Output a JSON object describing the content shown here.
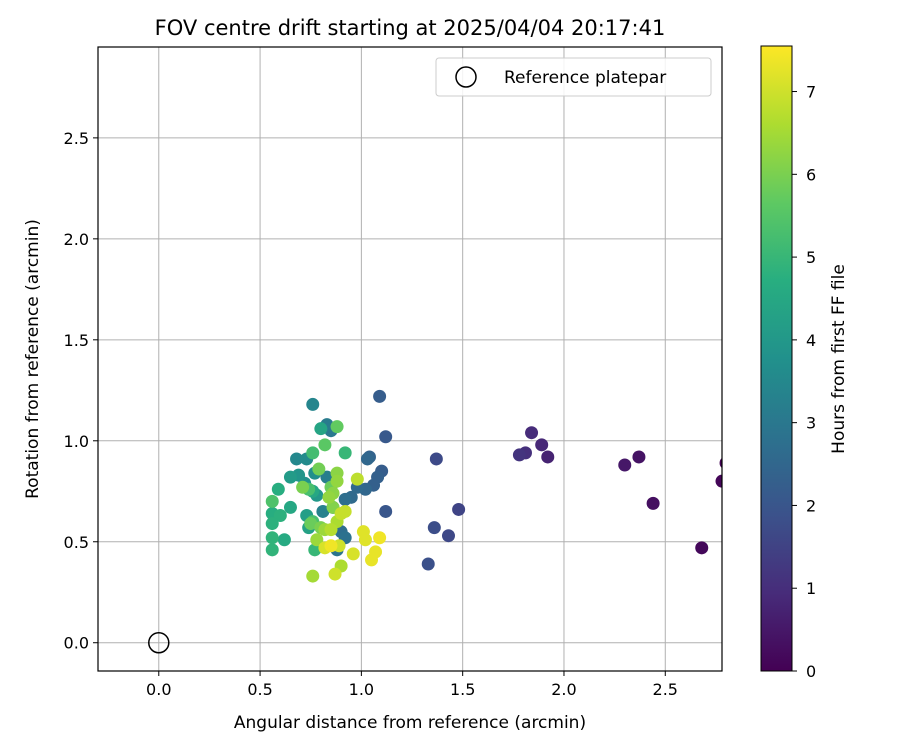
{
  "chart_data": {
    "type": "scatter",
    "title": "FOV centre drift starting at 2025/04/04 20:17:41",
    "xlabel": "Angular distance from reference (arcmin)",
    "ylabel": "Rotation from reference (arcmin)",
    "xlim": [
      -0.3,
      2.78
    ],
    "ylim": [
      -0.14,
      2.95
    ],
    "xticks": [
      "0.0",
      "0.5",
      "1.0",
      "1.5",
      "2.0",
      "2.5"
    ],
    "yticks": [
      "0.0",
      "0.5",
      "1.0",
      "1.5",
      "2.0",
      "2.5"
    ],
    "grid": true,
    "legend": {
      "position": "top-right",
      "entries": [
        "Reference platepar"
      ]
    },
    "colorbar": {
      "label": "Hours from first FF file",
      "range": [
        0,
        7.55
      ],
      "ticks": [
        "0",
        "1",
        "2",
        "3",
        "4",
        "5",
        "6",
        "7"
      ],
      "colormap": "viridis"
    },
    "reference_point": {
      "x": 0.0,
      "y": 0.0
    },
    "points": [
      {
        "x": 2.8,
        "y": 0.89,
        "c": 0.05
      },
      {
        "x": 2.78,
        "y": 0.8,
        "c": 0.1
      },
      {
        "x": 2.68,
        "y": 0.47,
        "c": 0.15
      },
      {
        "x": 2.44,
        "y": 0.69,
        "c": 0.3
      },
      {
        "x": 2.37,
        "y": 0.92,
        "c": 0.4
      },
      {
        "x": 2.3,
        "y": 0.88,
        "c": 0.5
      },
      {
        "x": 1.92,
        "y": 0.92,
        "c": 0.75
      },
      {
        "x": 1.89,
        "y": 0.98,
        "c": 0.85
      },
      {
        "x": 1.84,
        "y": 1.04,
        "c": 0.95
      },
      {
        "x": 1.81,
        "y": 0.94,
        "c": 1.05
      },
      {
        "x": 1.78,
        "y": 0.93,
        "c": 1.15
      },
      {
        "x": 1.48,
        "y": 0.66,
        "c": 1.55
      },
      {
        "x": 1.43,
        "y": 0.53,
        "c": 1.65
      },
      {
        "x": 1.37,
        "y": 0.91,
        "c": 1.7
      },
      {
        "x": 1.36,
        "y": 0.57,
        "c": 1.8
      },
      {
        "x": 1.33,
        "y": 0.39,
        "c": 1.85
      },
      {
        "x": 1.12,
        "y": 1.02,
        "c": 2.1
      },
      {
        "x": 1.12,
        "y": 0.65,
        "c": 2.0
      },
      {
        "x": 1.09,
        "y": 1.22,
        "c": 2.2
      },
      {
        "x": 1.1,
        "y": 0.85,
        "c": 2.2
      },
      {
        "x": 1.08,
        "y": 0.82,
        "c": 2.3
      },
      {
        "x": 1.06,
        "y": 0.78,
        "c": 2.3
      },
      {
        "x": 1.04,
        "y": 0.92,
        "c": 2.4
      },
      {
        "x": 1.03,
        "y": 0.91,
        "c": 2.5
      },
      {
        "x": 1.02,
        "y": 0.76,
        "c": 2.5
      },
      {
        "x": 0.98,
        "y": 0.77,
        "c": 2.6
      },
      {
        "x": 0.95,
        "y": 0.72,
        "c": 2.6
      },
      {
        "x": 0.92,
        "y": 0.71,
        "c": 2.7
      },
      {
        "x": 0.9,
        "y": 0.55,
        "c": 2.7
      },
      {
        "x": 0.92,
        "y": 0.52,
        "c": 2.8
      },
      {
        "x": 0.88,
        "y": 0.46,
        "c": 2.9
      },
      {
        "x": 0.85,
        "y": 1.05,
        "c": 3.0
      },
      {
        "x": 0.83,
        "y": 1.08,
        "c": 3.1
      },
      {
        "x": 0.86,
        "y": 0.67,
        "c": 3.1
      },
      {
        "x": 0.83,
        "y": 0.82,
        "c": 3.2
      },
      {
        "x": 0.81,
        "y": 0.65,
        "c": 3.3
      },
      {
        "x": 0.76,
        "y": 1.18,
        "c": 3.4
      },
      {
        "x": 0.68,
        "y": 0.91,
        "c": 3.5
      },
      {
        "x": 0.73,
        "y": 0.91,
        "c": 3.6
      },
      {
        "x": 0.77,
        "y": 0.84,
        "c": 3.7
      },
      {
        "x": 0.72,
        "y": 0.79,
        "c": 3.8
      },
      {
        "x": 0.69,
        "y": 0.83,
        "c": 3.9
      },
      {
        "x": 0.78,
        "y": 0.73,
        "c": 4.0
      },
      {
        "x": 0.65,
        "y": 0.82,
        "c": 4.1
      },
      {
        "x": 0.73,
        "y": 0.63,
        "c": 4.2
      },
      {
        "x": 0.74,
        "y": 0.57,
        "c": 4.3
      },
      {
        "x": 0.8,
        "y": 1.06,
        "c": 4.4
      },
      {
        "x": 0.76,
        "y": 0.75,
        "c": 4.5
      },
      {
        "x": 0.65,
        "y": 0.67,
        "c": 4.5
      },
      {
        "x": 0.62,
        "y": 0.51,
        "c": 4.6
      },
      {
        "x": 0.59,
        "y": 0.76,
        "c": 4.7
      },
      {
        "x": 0.56,
        "y": 0.64,
        "c": 4.7
      },
      {
        "x": 0.6,
        "y": 0.63,
        "c": 4.8
      },
      {
        "x": 0.56,
        "y": 0.59,
        "c": 4.8
      },
      {
        "x": 0.56,
        "y": 0.52,
        "c": 4.9
      },
      {
        "x": 0.56,
        "y": 0.46,
        "c": 4.9
      },
      {
        "x": 0.77,
        "y": 0.46,
        "c": 5.0
      },
      {
        "x": 0.92,
        "y": 0.94,
        "c": 5.0
      },
      {
        "x": 0.76,
        "y": 0.94,
        "c": 5.2
      },
      {
        "x": 0.74,
        "y": 0.76,
        "c": 5.3
      },
      {
        "x": 0.76,
        "y": 0.6,
        "c": 5.3
      },
      {
        "x": 0.56,
        "y": 0.7,
        "c": 5.4
      },
      {
        "x": 0.82,
        "y": 0.98,
        "c": 5.6
      },
      {
        "x": 0.88,
        "y": 1.07,
        "c": 5.7
      },
      {
        "x": 0.85,
        "y": 0.77,
        "c": 5.8
      },
      {
        "x": 0.75,
        "y": 0.59,
        "c": 5.8
      },
      {
        "x": 0.79,
        "y": 0.86,
        "c": 5.9
      },
      {
        "x": 0.71,
        "y": 0.77,
        "c": 6.0
      },
      {
        "x": 0.8,
        "y": 0.57,
        "c": 6.0
      },
      {
        "x": 0.86,
        "y": 0.67,
        "c": 6.1
      },
      {
        "x": 0.88,
        "y": 0.84,
        "c": 6.2
      },
      {
        "x": 0.86,
        "y": 0.74,
        "c": 6.2
      },
      {
        "x": 0.84,
        "y": 0.72,
        "c": 6.3
      },
      {
        "x": 0.88,
        "y": 0.8,
        "c": 6.3
      },
      {
        "x": 0.78,
        "y": 0.51,
        "c": 6.4
      },
      {
        "x": 0.82,
        "y": 0.56,
        "c": 6.4
      },
      {
        "x": 0.76,
        "y": 0.33,
        "c": 6.5
      },
      {
        "x": 0.88,
        "y": 0.6,
        "c": 6.6
      },
      {
        "x": 0.9,
        "y": 0.38,
        "c": 6.6
      },
      {
        "x": 0.85,
        "y": 0.56,
        "c": 6.7
      },
      {
        "x": 0.98,
        "y": 0.81,
        "c": 6.8
      },
      {
        "x": 0.9,
        "y": 0.64,
        "c": 6.9
      },
      {
        "x": 0.92,
        "y": 0.65,
        "c": 6.9
      },
      {
        "x": 0.87,
        "y": 0.34,
        "c": 7.0
      },
      {
        "x": 0.89,
        "y": 0.48,
        "c": 7.0
      },
      {
        "x": 0.82,
        "y": 0.47,
        "c": 7.1
      },
      {
        "x": 0.96,
        "y": 0.44,
        "c": 7.1
      },
      {
        "x": 1.01,
        "y": 0.55,
        "c": 7.2
      },
      {
        "x": 1.02,
        "y": 0.51,
        "c": 7.2
      },
      {
        "x": 1.05,
        "y": 0.41,
        "c": 7.3
      },
      {
        "x": 1.07,
        "y": 0.45,
        "c": 7.3
      },
      {
        "x": 1.09,
        "y": 0.52,
        "c": 7.4
      },
      {
        "x": 0.85,
        "y": 0.48,
        "c": 7.4
      }
    ]
  }
}
